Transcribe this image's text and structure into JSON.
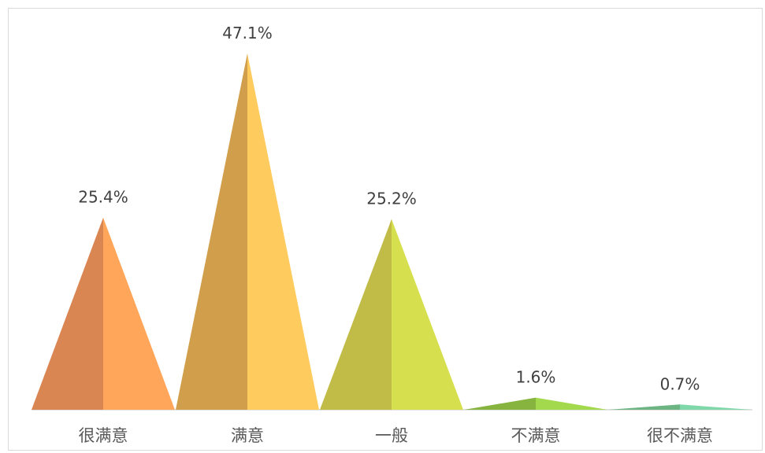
{
  "chart_data": {
    "type": "bar",
    "style": "triangle",
    "categories": [
      "很满意",
      "满意",
      "一般",
      "不满意",
      "很不满意"
    ],
    "values": [
      25.4,
      47.1,
      25.2,
      1.6,
      0.7
    ],
    "value_labels": [
      "25.4%",
      "47.1%",
      "25.2%",
      "1.6%",
      "0.7%"
    ],
    "unit": "%",
    "ylim": [
      0,
      47.1
    ],
    "grid": false,
    "legend": "none",
    "colors": [
      {
        "dark": "#D98652",
        "light": "#FFA65B"
      },
      {
        "dark": "#D19E4B",
        "light": "#FECB5E"
      },
      {
        "dark": "#C1BB48",
        "light": "#D6E04E"
      },
      {
        "dark": "#86B43F",
        "light": "#A3D94C"
      },
      {
        "dark": "#6CB583",
        "light": "#7FD8A9"
      }
    ],
    "baseline_color": "#d9d9d9"
  }
}
